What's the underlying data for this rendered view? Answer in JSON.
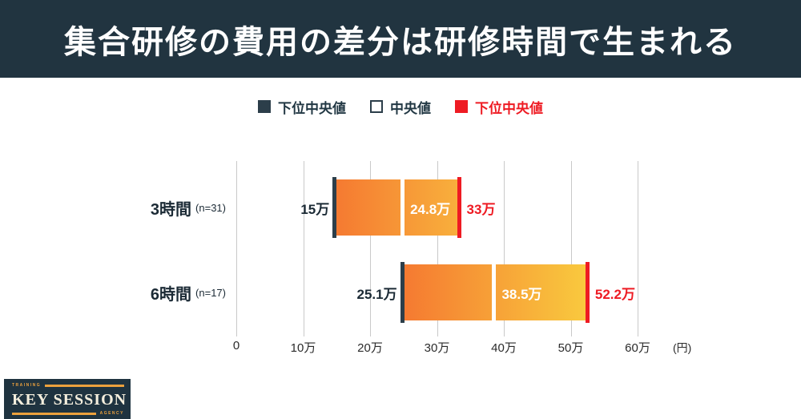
{
  "title": "集合研修の費用の差分は研修時間で生まれる",
  "legend": [
    {
      "label": "下位中央値",
      "swatch": "#2c3e4a",
      "swatch_style": "filled",
      "text_color": "#223844"
    },
    {
      "label": "中央値",
      "swatch": "#ffffff",
      "swatch_style": "outlined",
      "text_color": "#223844"
    },
    {
      "label": "下位中央値",
      "swatch": "#ee1b23",
      "swatch_style": "filled",
      "text_color": "#ee1b23"
    }
  ],
  "chart_data": {
    "type": "bar",
    "orientation": "horizontal",
    "title": "集合研修の費用の差分は研修時間で生まれる",
    "unit_label": "(円)",
    "xlim": [
      0,
      63
    ],
    "grid": true,
    "x_ticks": [
      {
        "value": 0,
        "label": "0"
      },
      {
        "value": 10,
        "label": "10万"
      },
      {
        "value": 20,
        "label": "20万"
      },
      {
        "value": 30,
        "label": "30万"
      },
      {
        "value": 40,
        "label": "40万"
      },
      {
        "value": 50,
        "label": "50万"
      },
      {
        "value": 60,
        "label": "60万"
      }
    ],
    "rows": [
      {
        "category": "3時間",
        "sample_label": "(n=31)",
        "lower_median": 15,
        "median": 24.8,
        "upper_median": 33,
        "lower_label": "15万",
        "median_label": "24.8万",
        "upper_label": "33万"
      },
      {
        "category": "6時間",
        "sample_label": "(n=17)",
        "lower_median": 25.1,
        "median": 38.5,
        "upper_median": 52.2,
        "lower_label": "25.1万",
        "median_label": "38.5万",
        "upper_label": "52.2万"
      }
    ]
  },
  "colors": {
    "banner_bg": "#213440",
    "dark": "#2c3e4a",
    "red": "#ee1b23",
    "bar_gradient_start": "#f57a31",
    "bar_gradient_end_short": "#f8af3c",
    "bar_gradient_end_long": "#f9c93e",
    "grid": "#c9c9c9",
    "axis_text": "#2b2b2b",
    "label_dark": "#1b2a35",
    "logo_bg": "#1f3340",
    "logo_orange": "#eca13d",
    "logo_cream": "#f4eedd"
  },
  "logo": {
    "top_text": "TRAINING",
    "name": "KEY SESSION",
    "bottom_text": "AGENCY"
  }
}
